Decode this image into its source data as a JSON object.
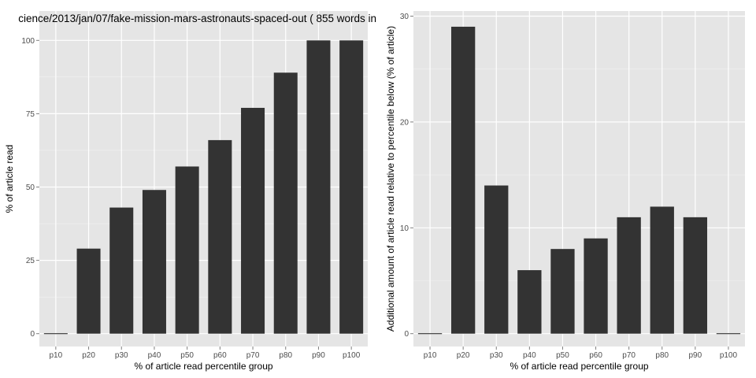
{
  "title": "cience/2013/jan/07/fake-mission-mars-astronauts-spaced-out ( 855 words in",
  "colors": {
    "panel_bg": "#e5e5e5",
    "grid": "#ffffff",
    "bar": "#333333",
    "tick_text": "#4d4d4d"
  },
  "chart_data": [
    {
      "type": "bar",
      "title": "cience/2013/jan/07/fake-mission-mars-astronauts-spaced-out ( 855 words in",
      "xlabel": "% of article read percentile group",
      "ylabel": "% of article read",
      "categories": [
        "p10",
        "p20",
        "p30",
        "p40",
        "p50",
        "p60",
        "p70",
        "p80",
        "p90",
        "p100"
      ],
      "values": [
        0,
        29,
        43,
        49,
        57,
        66,
        77,
        89,
        100,
        100
      ],
      "ylim": [
        0,
        100
      ],
      "yticks": [
        "0",
        "25",
        "50",
        "75",
        "100"
      ],
      "grid": true
    },
    {
      "type": "bar",
      "title": "",
      "xlabel": "% of article read percentile group",
      "ylabel": "Additional amount of article read relative to percentile below (% of article)",
      "categories": [
        "p10",
        "p20",
        "p30",
        "p40",
        "p50",
        "p60",
        "p70",
        "p80",
        "p90",
        "p100"
      ],
      "values": [
        0,
        29,
        14,
        6,
        8,
        9,
        11,
        12,
        11,
        0
      ],
      "ylim": [
        0,
        30
      ],
      "yticks": [
        "0",
        "10",
        "20",
        "30"
      ],
      "grid": true
    }
  ]
}
